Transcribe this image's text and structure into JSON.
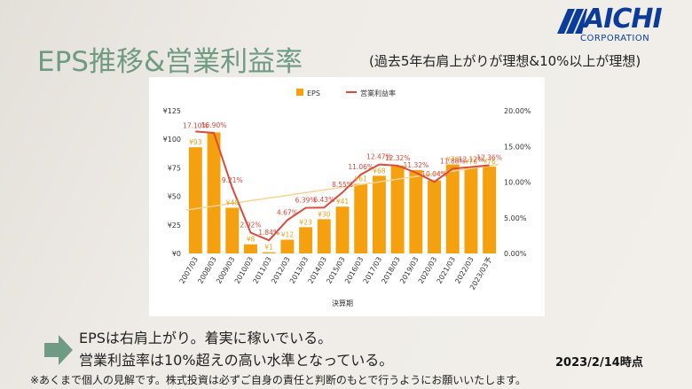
{
  "logo": {
    "name": "AICHI",
    "sub": "CORPORATION",
    "color": "#0b3c9c"
  },
  "title": "EPS推移&営業利益率",
  "subtitle": "(過去5年右肩上がりが理想&10%以上が理想)",
  "notes": [
    "EPSは右肩上がり。着実に稼いでいる。",
    "営業利益率は10%超えの高い水準となっている。"
  ],
  "as_of": "2023/2/14時点",
  "disclaimer": "※あくまで個人の見解です。株式投資は必ずご自身の責任と判断のもとで行うようにお願いいたします。",
  "colors": {
    "bar": "#f5a00f",
    "line": "#db4a3d",
    "trend": "#f7d592",
    "title": "#6f9a84",
    "arrow": "#6f9a84"
  },
  "chart_data": {
    "type": "bar",
    "xlabel": "決算期",
    "legend_position": "top",
    "categories": [
      "2007/03",
      "2008/03",
      "2009/03",
      "2010/03",
      "2011/03",
      "2012/03",
      "2013/03",
      "2014/03",
      "2015/03",
      "2016/03",
      "2017/03",
      "2018/03",
      "2019/03",
      "2020/03",
      "2021/03",
      "2022/03",
      "2023/03予"
    ],
    "series": [
      {
        "name": "EPS",
        "kind": "bar",
        "axis": "left",
        "values": [
          93,
          106,
          40,
          8,
          1,
          12,
          23,
          30,
          41,
          61,
          68,
          77,
          73,
          64,
          78,
          76,
          76
        ],
        "labels": [
          "¥93",
          "",
          "¥40",
          "¥8",
          "¥1",
          "¥12",
          "¥23",
          "¥30",
          "¥41",
          "¥61",
          "¥68",
          "",
          "",
          "",
          "¥78",
          "¥76",
          "¥76"
        ]
      },
      {
        "name": "営業利益率",
        "kind": "line",
        "axis": "right",
        "values": [
          17.1,
          16.9,
          9.21,
          2.92,
          1.84,
          4.67,
          6.39,
          6.43,
          8.55,
          11.06,
          12.47,
          12.32,
          11.32,
          10.04,
          11.88,
          12.12,
          12.36
        ],
        "labels": [
          "17.10%",
          "16.90%",
          "9.21%",
          "2.92%",
          "1.84%",
          "4.67%",
          "6.39%",
          "6.43%",
          "8.55%",
          "11.06%",
          "12.47%",
          "12.32%",
          "11.32%",
          "10.04%",
          "11.88%",
          "12.12%",
          "12.36%"
        ]
      }
    ],
    "trendline": {
      "series": "EPS",
      "start": 38,
      "end": 78
    },
    "left_axis": {
      "ticks": [
        0,
        25,
        50,
        75,
        100,
        125
      ],
      "tick_labels": [
        "¥0",
        "¥25",
        "¥50",
        "¥75",
        "¥100",
        "¥125"
      ],
      "ylim": [
        0,
        125
      ]
    },
    "right_axis": {
      "ticks": [
        0,
        5,
        10,
        15,
        20
      ],
      "tick_labels": [
        "0.00%",
        "5.00%",
        "10.00%",
        "15.00%",
        "20.00%"
      ],
      "ylim": [
        0,
        20
      ]
    },
    "grid": false
  }
}
